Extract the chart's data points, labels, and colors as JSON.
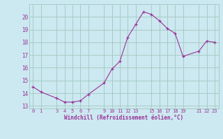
{
  "hours": [
    0,
    1,
    3,
    4,
    5,
    6,
    7,
    9,
    10,
    11,
    12,
    13,
    14,
    15,
    16,
    17,
    18,
    19,
    21,
    22,
    23
  ],
  "temps": [
    14.5,
    14.1,
    13.6,
    13.3,
    13.3,
    13.4,
    13.9,
    14.8,
    15.9,
    16.5,
    18.4,
    19.4,
    20.4,
    20.2,
    19.7,
    19.1,
    18.7,
    16.9,
    17.3,
    18.1,
    18.0
  ],
  "line_color": "#993399",
  "marker_color": "#993399",
  "bg_color": "#cce8f0",
  "grid_color": "#a0c8c0",
  "xlabel": "Windchill (Refroidissement éolien,°C)",
  "xlabel_color": "#993399",
  "tick_color": "#993399",
  "xlim": [
    -0.5,
    23.5
  ],
  "ylim": [
    12.8,
    21.0
  ],
  "xticks": [
    0,
    1,
    3,
    4,
    5,
    6,
    7,
    9,
    10,
    11,
    12,
    13,
    15,
    16,
    17,
    18,
    19,
    21,
    22,
    23
  ],
  "yticks": [
    13,
    14,
    15,
    16,
    17,
    18,
    19,
    20
  ]
}
